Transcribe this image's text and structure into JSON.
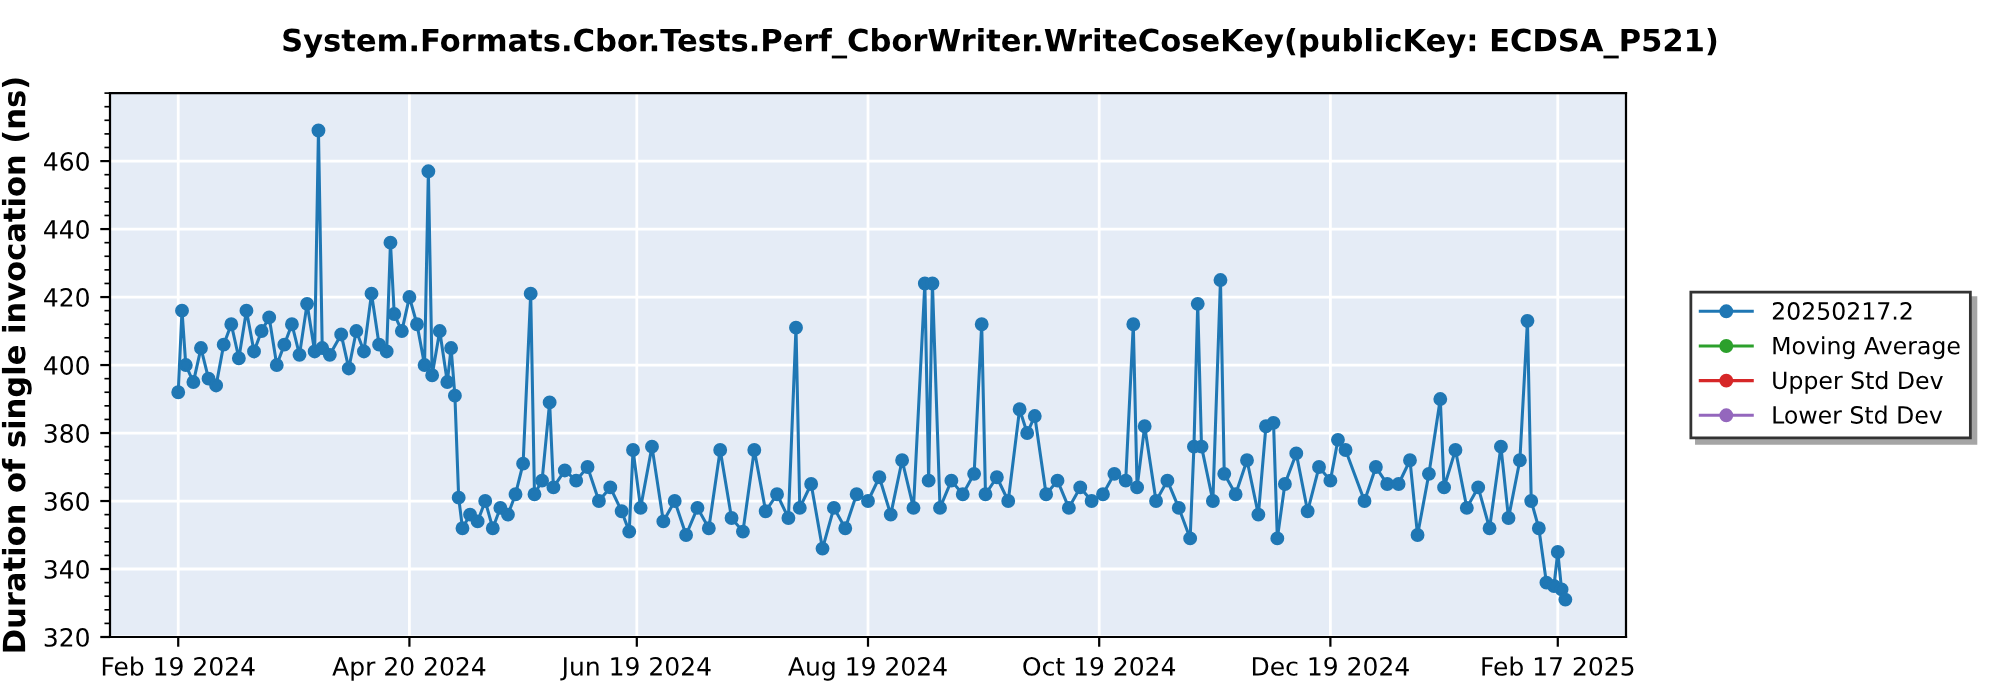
{
  "chart_data": {
    "type": "line",
    "title": "System.Formats.Cbor.Tests.Perf_CborWriter.WriteCoseKey(publicKey: ECDSA_P521)",
    "ylabel": "Duration of single invocation (ns)",
    "x": [
      "2024-02-19",
      "2024-02-20",
      "2024-02-21",
      "2024-02-23",
      "2024-02-25",
      "2024-02-27",
      "2024-02-29",
      "2024-03-02",
      "2024-03-04",
      "2024-03-06",
      "2024-03-08",
      "2024-03-10",
      "2024-03-12",
      "2024-03-14",
      "2024-03-16",
      "2024-03-18",
      "2024-03-20",
      "2024-03-22",
      "2024-03-24",
      "2024-03-26",
      "2024-03-27",
      "2024-03-28",
      "2024-03-30",
      "2024-04-02",
      "2024-04-04",
      "2024-04-06",
      "2024-04-08",
      "2024-04-10",
      "2024-04-12",
      "2024-04-14",
      "2024-04-15",
      "2024-04-16",
      "2024-04-18",
      "2024-04-20",
      "2024-04-22",
      "2024-04-24",
      "2024-04-25",
      "2024-04-26",
      "2024-04-28",
      "2024-04-30",
      "2024-05-01",
      "2024-05-02",
      "2024-05-03",
      "2024-05-04",
      "2024-05-06",
      "2024-05-08",
      "2024-05-10",
      "2024-05-12",
      "2024-05-14",
      "2024-05-16",
      "2024-05-18",
      "2024-05-20",
      "2024-05-22",
      "2024-05-23",
      "2024-05-25",
      "2024-05-27",
      "2024-05-28",
      "2024-05-31",
      "2024-06-03",
      "2024-06-06",
      "2024-06-09",
      "2024-06-12",
      "2024-06-15",
      "2024-06-17",
      "2024-06-18",
      "2024-06-20",
      "2024-06-23",
      "2024-06-26",
      "2024-06-29",
      "2024-07-02",
      "2024-07-05",
      "2024-07-08",
      "2024-07-11",
      "2024-07-14",
      "2024-07-17",
      "2024-07-20",
      "2024-07-23",
      "2024-07-26",
      "2024-07-29",
      "2024-07-31",
      "2024-08-01",
      "2024-08-04",
      "2024-08-07",
      "2024-08-10",
      "2024-08-13",
      "2024-08-16",
      "2024-08-19",
      "2024-08-22",
      "2024-08-25",
      "2024-08-28",
      "2024-08-31",
      "2024-09-03",
      "2024-09-04",
      "2024-09-05",
      "2024-09-07",
      "2024-09-10",
      "2024-09-13",
      "2024-09-16",
      "2024-09-18",
      "2024-09-19",
      "2024-09-22",
      "2024-09-25",
      "2024-09-28",
      "2024-09-30",
      "2024-10-02",
      "2024-10-05",
      "2024-10-08",
      "2024-10-11",
      "2024-10-14",
      "2024-10-17",
      "2024-10-20",
      "2024-10-23",
      "2024-10-26",
      "2024-10-28",
      "2024-10-29",
      "2024-10-31",
      "2024-11-03",
      "2024-11-06",
      "2024-11-09",
      "2024-11-12",
      "2024-11-13",
      "2024-11-14",
      "2024-11-15",
      "2024-11-18",
      "2024-11-20",
      "2024-11-21",
      "2024-11-24",
      "2024-11-27",
      "2024-11-30",
      "2024-12-02",
      "2024-12-04",
      "2024-12-05",
      "2024-12-07",
      "2024-12-10",
      "2024-12-13",
      "2024-12-16",
      "2024-12-19",
      "2024-12-21",
      "2024-12-23",
      "2024-12-28",
      "2024-12-31",
      "2025-01-03",
      "2025-01-06",
      "2025-01-09",
      "2025-01-11",
      "2025-01-14",
      "2025-01-17",
      "2025-01-18",
      "2025-01-21",
      "2025-01-24",
      "2025-01-27",
      "2025-01-30",
      "2025-02-02",
      "2025-02-04",
      "2025-02-07",
      "2025-02-09",
      "2025-02-10",
      "2025-02-12",
      "2025-02-14",
      "2025-02-16",
      "2025-02-17",
      "2025-02-18",
      "2025-02-19"
    ],
    "series": [
      {
        "name": "20250217.2",
        "color": "#1f77b4",
        "values": [
          392,
          416,
          400,
          395,
          405,
          396,
          394,
          406,
          412,
          402,
          416,
          404,
          410,
          414,
          400,
          406,
          412,
          403,
          418,
          404,
          469,
          405,
          403,
          409,
          399,
          410,
          404,
          421,
          406,
          404,
          436,
          415,
          410,
          420,
          412,
          400,
          457,
          397,
          410,
          395,
          405,
          391,
          361,
          352,
          356,
          354,
          360,
          352,
          358,
          356,
          362,
          371,
          421,
          362,
          366,
          389,
          364,
          369,
          366,
          370,
          360,
          364,
          357,
          351,
          375,
          358,
          376,
          354,
          360,
          350,
          358,
          352,
          375,
          355,
          351,
          375,
          357,
          362,
          355,
          411,
          358,
          365,
          346,
          358,
          352,
          362,
          360,
          367,
          356,
          372,
          358,
          424,
          366,
          424,
          358,
          366,
          362,
          368,
          412,
          362,
          367,
          360,
          387,
          380,
          385,
          362,
          366,
          358,
          364,
          360,
          362,
          368,
          366,
          412,
          364,
          382,
          360,
          366,
          358,
          349,
          376,
          418,
          376,
          360,
          425,
          368,
          362,
          372,
          356,
          382,
          383,
          349,
          365,
          374,
          357,
          370,
          366,
          378,
          375,
          360,
          370,
          365,
          365,
          372,
          350,
          368,
          390,
          364,
          375,
          358,
          364,
          352,
          376,
          355,
          372,
          413,
          360,
          352,
          336,
          335,
          345,
          334,
          331
        ]
      },
      {
        "name": "Moving Average",
        "color": "#2ca02c",
        "values": [
          null,
          null,
          null,
          null,
          null,
          null,
          null,
          null,
          null,
          null,
          null,
          null,
          null,
          null,
          null,
          null,
          null,
          null,
          null,
          null,
          null,
          null,
          null,
          null,
          null,
          null,
          null,
          null,
          null,
          null,
          null,
          null,
          null,
          null,
          null,
          null,
          null,
          null,
          null,
          null,
          null,
          null,
          null,
          null,
          null,
          null,
          null,
          null,
          null,
          null,
          null,
          null,
          null,
          null,
          null,
          null,
          null,
          null,
          null,
          null,
          null,
          null,
          null,
          null,
          null,
          null,
          null,
          null,
          null,
          null,
          null,
          null,
          null,
          null,
          null,
          null,
          null,
          null,
          null,
          null,
          null,
          null,
          null,
          null,
          null,
          null,
          null,
          null,
          null,
          null,
          null,
          null,
          null,
          null,
          null,
          null,
          null,
          null,
          null,
          null,
          null,
          null,
          null,
          null,
          null,
          null,
          null,
          null,
          null,
          null,
          null,
          null,
          null,
          null,
          null,
          null,
          null,
          null,
          null,
          null,
          null,
          null,
          null,
          null,
          null,
          null,
          null,
          null,
          null,
          null,
          null,
          null,
          null,
          null,
          null,
          null,
          null,
          null,
          null,
          null,
          null,
          null,
          null,
          null,
          null,
          null,
          null,
          null,
          null,
          null,
          null,
          null,
          null,
          null,
          null,
          null,
          null,
          null,
          null,
          null,
          null,
          null,
          null
        ]
      },
      {
        "name": "Upper Std Dev",
        "color": "#d62728",
        "values": [
          null,
          null,
          null,
          null,
          null,
          null,
          null,
          null,
          null,
          null,
          null,
          null,
          null,
          null,
          null,
          null,
          null,
          null,
          null,
          null,
          null,
          null,
          null,
          null,
          null,
          null,
          null,
          null,
          null,
          null,
          null,
          null,
          null,
          null,
          null,
          null,
          null,
          null,
          null,
          null,
          null,
          null,
          null,
          null,
          null,
          null,
          null,
          null,
          null,
          null,
          null,
          null,
          null,
          null,
          null,
          null,
          null,
          null,
          null,
          null,
          null,
          null,
          null,
          null,
          null,
          null,
          null,
          null,
          null,
          null,
          null,
          null,
          null,
          null,
          null,
          null,
          null,
          null,
          null,
          null,
          null,
          null,
          null,
          null,
          null,
          null,
          null,
          null,
          null,
          null,
          null,
          null,
          null,
          null,
          null,
          null,
          null,
          null,
          null,
          null,
          null,
          null,
          null,
          null,
          null,
          null,
          null,
          null,
          null,
          null,
          null,
          null,
          null,
          null,
          null,
          null,
          null,
          null,
          null,
          null,
          null,
          null,
          null,
          null,
          null,
          null,
          null,
          null,
          null,
          null,
          null,
          null,
          null,
          null,
          null,
          null,
          null,
          null,
          null,
          null,
          null,
          null,
          null,
          null,
          null,
          null,
          null,
          null,
          null,
          null,
          null,
          null,
          null,
          null,
          null,
          null,
          null,
          null,
          null,
          null,
          null,
          null,
          null
        ]
      },
      {
        "name": "Lower Std Dev",
        "color": "#9467bd",
        "values": [
          null,
          null,
          null,
          null,
          null,
          null,
          null,
          null,
          null,
          null,
          null,
          null,
          null,
          null,
          null,
          null,
          null,
          null,
          null,
          null,
          null,
          null,
          null,
          null,
          null,
          null,
          null,
          null,
          null,
          null,
          null,
          null,
          null,
          null,
          null,
          null,
          null,
          null,
          null,
          null,
          null,
          null,
          null,
          null,
          null,
          null,
          null,
          null,
          null,
          null,
          null,
          null,
          null,
          null,
          null,
          null,
          null,
          null,
          null,
          null,
          null,
          null,
          null,
          null,
          null,
          null,
          null,
          null,
          null,
          null,
          null,
          null,
          null,
          null,
          null,
          null,
          null,
          null,
          null,
          null,
          null,
          null,
          null,
          null,
          null,
          null,
          null,
          null,
          null,
          null,
          null,
          null,
          null,
          null,
          null,
          null,
          null,
          null,
          null,
          null,
          null,
          null,
          null,
          null,
          null,
          null,
          null,
          null,
          null,
          null,
          null,
          null,
          null,
          null,
          null,
          null,
          null,
          null,
          null,
          null,
          null,
          null,
          null,
          null,
          null,
          null,
          null,
          null,
          null,
          null,
          null,
          null,
          null,
          null,
          null,
          null,
          null,
          null,
          null,
          null,
          null,
          null,
          null,
          null,
          null,
          null,
          null,
          null,
          null,
          null,
          null,
          null,
          null,
          null,
          null,
          null,
          null,
          null,
          null,
          null,
          null,
          null,
          null
        ]
      }
    ],
    "xlim": [
      "2024-02-01",
      "2025-03-07"
    ],
    "xticks": [
      {
        "value": "2024-02-19",
        "label": "Feb 19 2024"
      },
      {
        "value": "2024-04-20",
        "label": "Apr 20 2024"
      },
      {
        "value": "2024-06-19",
        "label": "Jun 19 2024"
      },
      {
        "value": "2024-08-19",
        "label": "Aug 19 2024"
      },
      {
        "value": "2024-10-19",
        "label": "Oct 19 2024"
      },
      {
        "value": "2024-12-19",
        "label": "Dec 19 2024"
      },
      {
        "value": "2025-02-17",
        "label": "Feb 17 2025"
      }
    ],
    "ylim": [
      320,
      480
    ],
    "yticks": [
      320,
      340,
      360,
      380,
      400,
      420,
      440,
      460
    ],
    "grid": true,
    "legend": "right",
    "marker": "circle",
    "line_style": "solid"
  }
}
